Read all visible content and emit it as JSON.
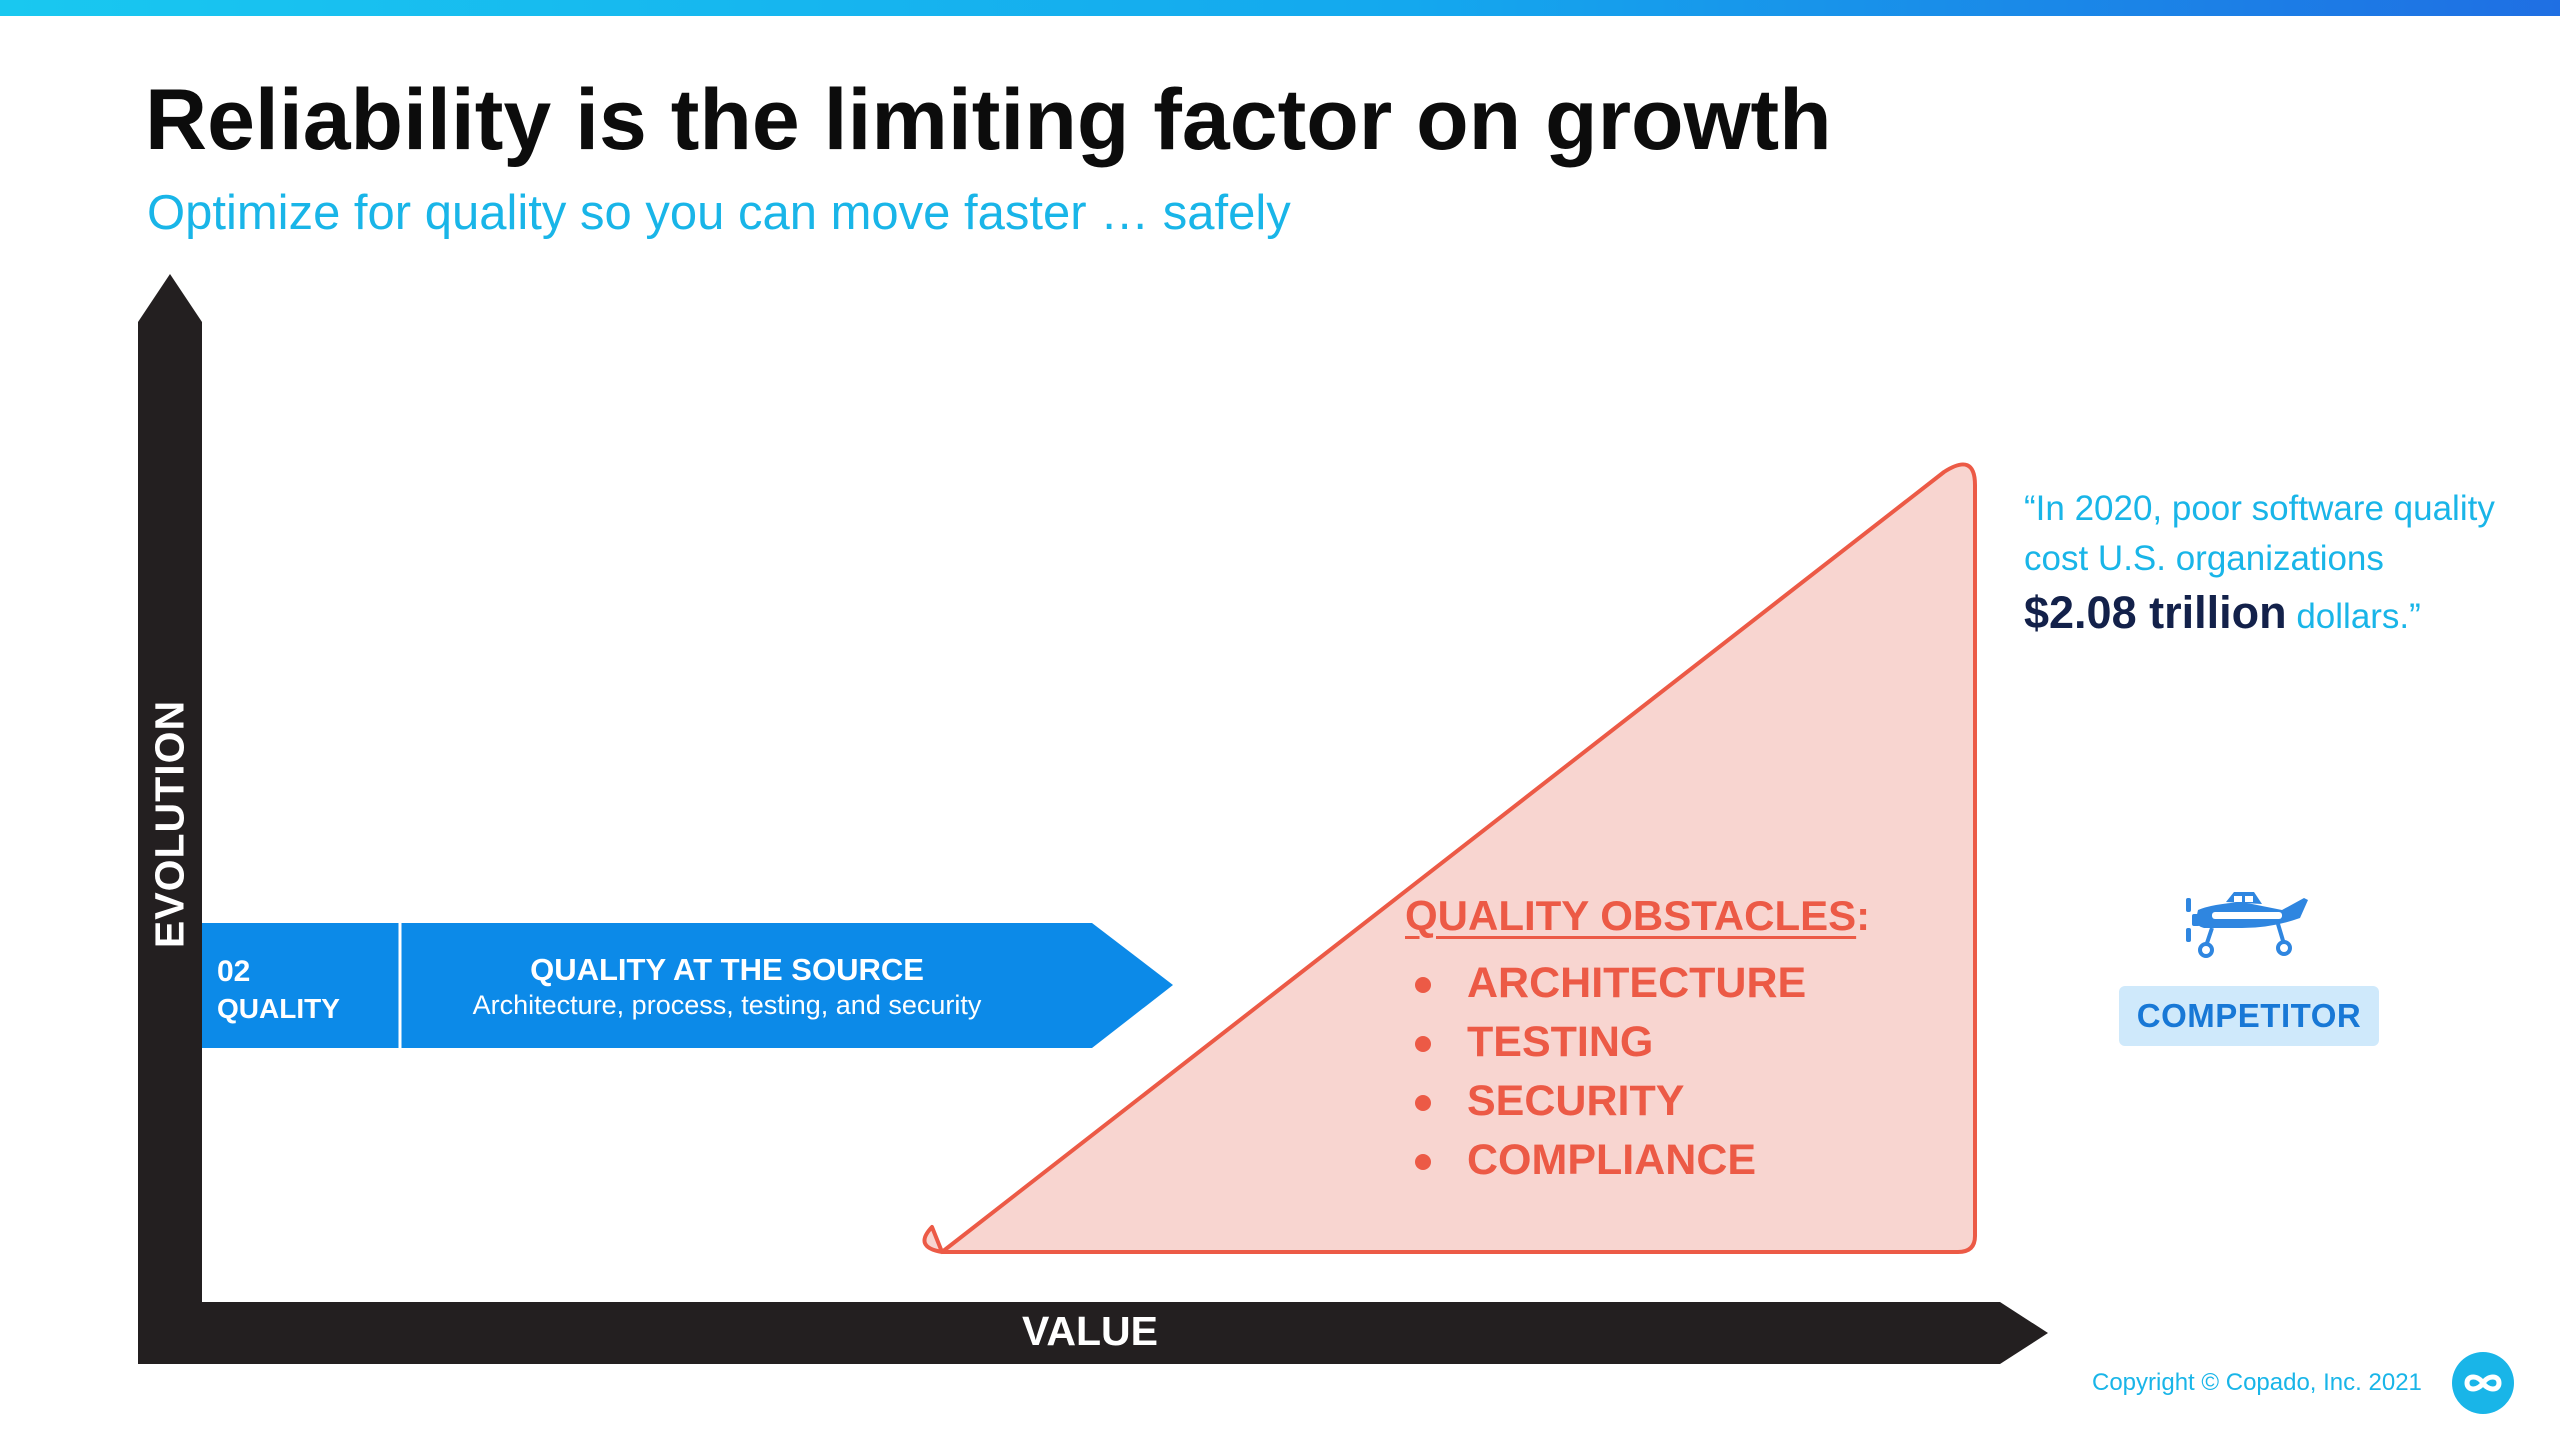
{
  "header": {
    "title": "Reliability is the limiting factor on growth",
    "subtitle": "Optimize for quality so you can move faster … safely"
  },
  "axes": {
    "y_label": "EVOLUTION",
    "x_label": "VALUE"
  },
  "stage": {
    "number": "02",
    "name": "QUALITY",
    "heading": "QUALITY AT THE SOURCE",
    "description": "Architecture, process, testing, and security"
  },
  "obstacles": {
    "title": "QUALITY OBSTACLES",
    "title_suffix": ":",
    "items": [
      "ARCHITECTURE",
      "TESTING",
      "SECURITY",
      "COMPLIANCE"
    ]
  },
  "quote": {
    "line1": "“In 2020, poor software quality",
    "line2": "cost U.S. organizations",
    "amount": "$2.08 trillion",
    "suffix": " dollars.”"
  },
  "competitor": {
    "label": "COMPETITOR",
    "icon": "airplane-icon"
  },
  "footer": {
    "copyright": "Copyright © Copado, Inc. 2021",
    "logo_icon": "copado-logo-icon"
  },
  "colors": {
    "accent_cyan": "#19b5e8",
    "stage_blue": "#0c8ae8",
    "axis_dark": "#231f20",
    "obstacle_red": "#ec5a46",
    "obstacle_fill": "#f8d5d0",
    "quote_emphasis": "#13214a",
    "competitor_bg": "#cfe9fb"
  }
}
